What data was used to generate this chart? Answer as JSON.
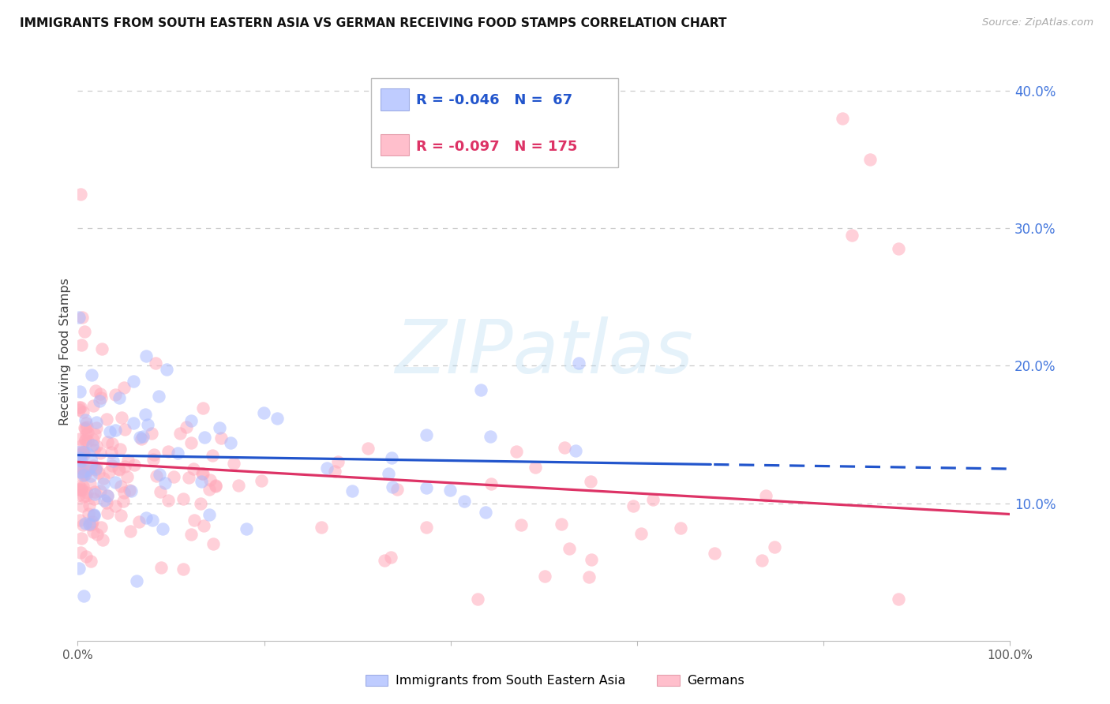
{
  "title": "IMMIGRANTS FROM SOUTH EASTERN ASIA VS GERMAN RECEIVING FOOD STAMPS CORRELATION CHART",
  "source": "Source: ZipAtlas.com",
  "ylabel": "Receiving Food Stamps",
  "watermark": "ZIPatlas",
  "blue_label": "Immigrants from South Eastern Asia",
  "pink_label": "Germans",
  "blue_R": -0.046,
  "blue_N": 67,
  "pink_R": -0.097,
  "pink_N": 175,
  "blue_color": "#aabbff",
  "pink_color": "#ffaabb",
  "trend_blue": "#2255cc",
  "trend_pink": "#dd3366",
  "ytick_color": "#4477dd",
  "xlim": [
    0,
    1.0
  ],
  "ylim": [
    0,
    0.42
  ],
  "yticks": [
    0.1,
    0.2,
    0.3,
    0.4
  ],
  "ytick_labels": [
    "10.0%",
    "20.0%",
    "30.0%",
    "40.0%"
  ]
}
